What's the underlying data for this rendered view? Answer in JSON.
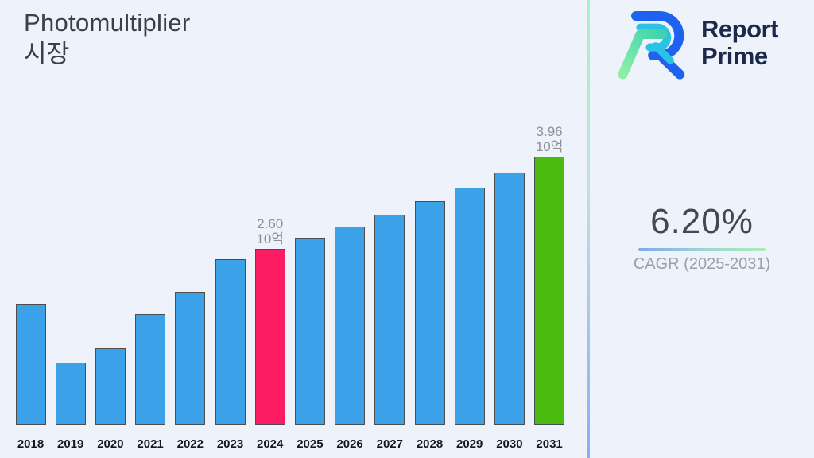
{
  "page": {
    "background": "#edf2fb"
  },
  "title": {
    "line1": "Photomultiplier",
    "line2": "시장"
  },
  "logo": {
    "line1": "Report",
    "line2": "Prime",
    "text_color": "#1d2949",
    "icon_blue": "#1e63ef",
    "icon_cyan": "#29c3e5",
    "icon_green_start": "#8df0a6",
    "icon_green_end": "#3fd3ad"
  },
  "stats": {
    "cagr_value": "6.20%",
    "cagr_label": "CAGR (2025-2031)"
  },
  "chart_data": {
    "type": "bar",
    "title": "Photomultiplier 시장",
    "unit_label": "10억",
    "categories": [
      "2018",
      "2019",
      "2020",
      "2021",
      "2022",
      "2023",
      "2024",
      "2025",
      "2026",
      "2027",
      "2028",
      "2029",
      "2030",
      "2031"
    ],
    "values": [
      1.79,
      0.92,
      1.13,
      1.63,
      1.96,
      2.45,
      2.6,
      2.76,
      2.93,
      3.11,
      3.31,
      3.51,
      3.73,
      3.96
    ],
    "ylim": [
      0,
      4.2
    ],
    "grid": false,
    "legend": "none",
    "colors": {
      "default": "#3ba2e9",
      "bar_border": "#4d4d4d",
      "annotation_text": "#8f9094"
    },
    "highlights": [
      {
        "category": "2024",
        "color": "#fb1c63",
        "label_lines": [
          "2.60",
          "10억"
        ]
      },
      {
        "category": "2031",
        "color": "#4bbb10",
        "label_lines": [
          "3.96",
          "10억"
        ]
      }
    ]
  }
}
